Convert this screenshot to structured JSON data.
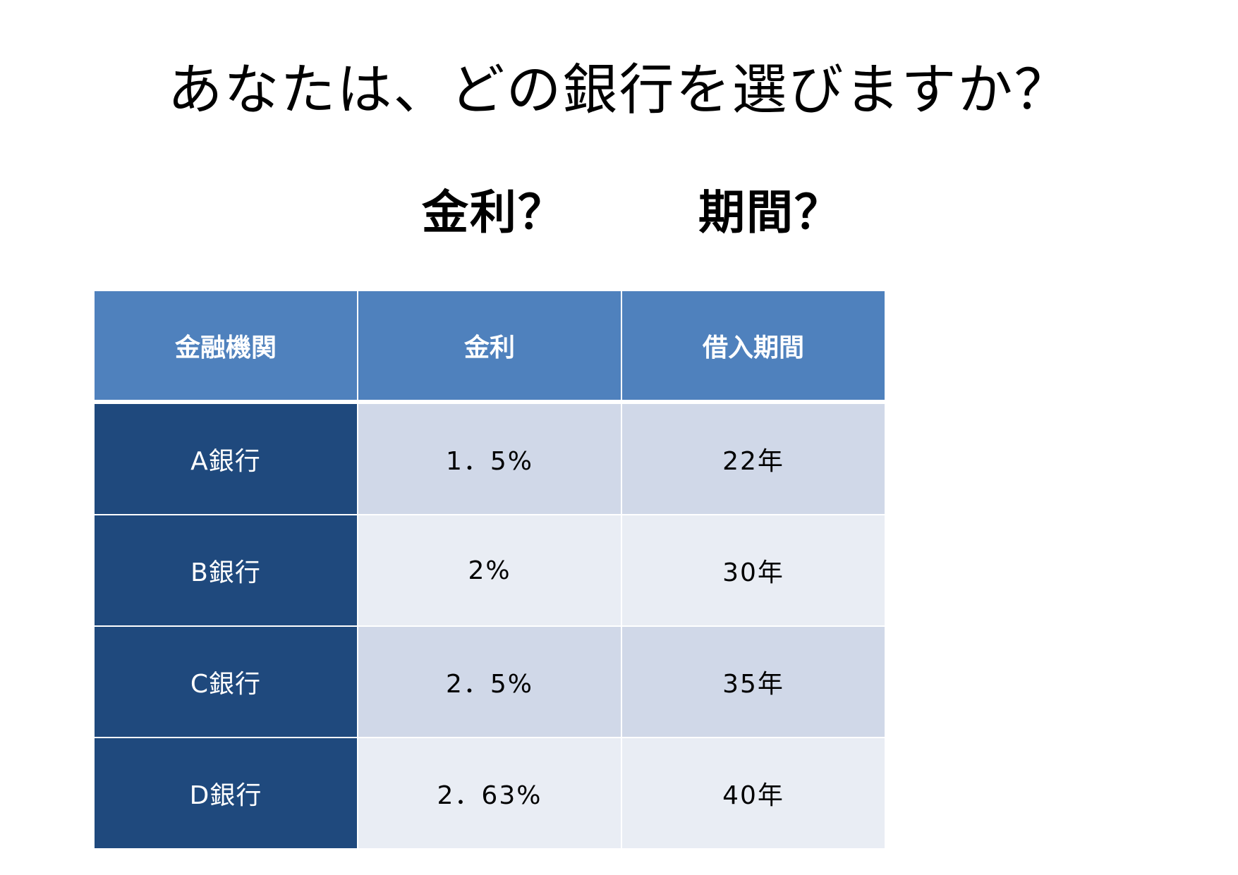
{
  "title": "あなたは、どの銀行を選びますか？",
  "subtitles": {
    "interest": "金利？",
    "period": "期間？"
  },
  "table": {
    "headers": [
      "金融機関",
      "金利",
      "借入期間"
    ],
    "rows": [
      [
        "A銀行",
        "1．5%",
        "22年"
      ],
      [
        "B銀行",
        "2%",
        "30年"
      ],
      [
        "C銀行",
        "2．5%",
        "35年"
      ],
      [
        "D銀行",
        "2．63%",
        "40年"
      ]
    ]
  },
  "colors": {
    "header_bg": "#4f81bd",
    "bank_col_bg": "#1f497d",
    "row_band_dark": "#d0d8e8",
    "row_band_light": "#e9edf4"
  }
}
